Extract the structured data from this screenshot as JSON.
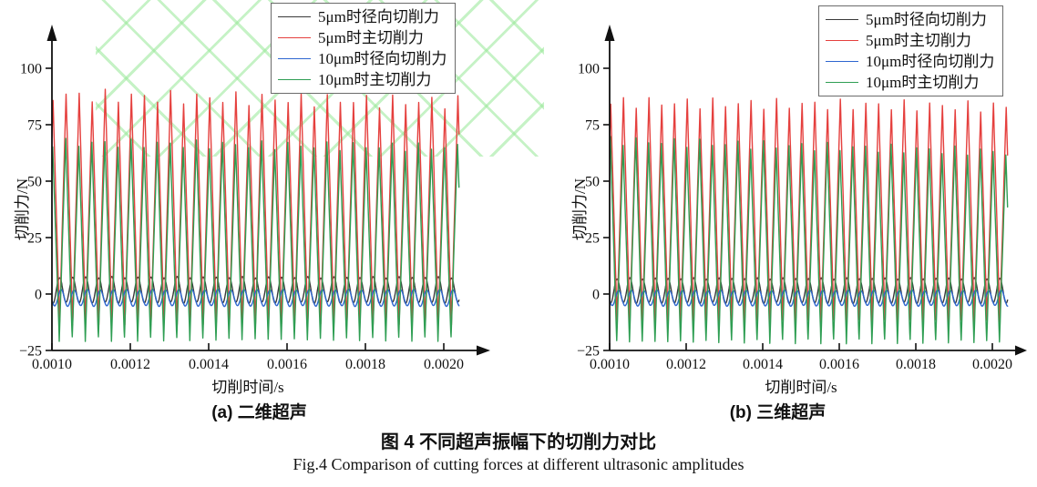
{
  "figure": {
    "caption_cn": "图 4 不同超声振幅下的切削力对比",
    "caption_en": "Fig.4 Comparison of cutting forces at different ultrasonic amplitudes",
    "watermark_color": "#96e896"
  },
  "chart_data": [
    {
      "type": "line",
      "subcaption": "(a) 二维超声",
      "xlabel": "切削时间/s",
      "ylabel": "切削力/N",
      "x_ticks": [
        "0.0010",
        "0.0012",
        "0.0014",
        "0.0016",
        "0.0018",
        "0.0020"
      ],
      "y_ticks": [
        -25,
        0,
        25,
        50,
        75,
        100
      ],
      "xlim": [
        0.001,
        0.002
      ],
      "ylim": [
        -25,
        107
      ],
      "grid": false,
      "legend_position": "top-right-inside",
      "signal": {
        "frequency_hz": 30000,
        "t_start_s": 0.001,
        "t_end_s": 0.00204,
        "cycles_shown": 31
      },
      "series": [
        {
          "name": "5μm时径向切削力",
          "color": "#3a3a3a",
          "shape": "sine",
          "mean_N": 1.8,
          "amp_N": 5.6,
          "phase_offset": 0.25,
          "seed": 11,
          "jitter": 0.12
        },
        {
          "name": "5μm时主切削力",
          "color": "#e5403e",
          "shape": "triangle",
          "peak_N": 88,
          "trough_N": -13,
          "phase_offset": 0.0,
          "seed": 2,
          "jitter": 0.035,
          "trend_N": 3
        },
        {
          "name": "10μm时径向切削力",
          "color": "#2e66d0",
          "shape": "sine",
          "mean_N": -1.7,
          "amp_N": 3.6,
          "phase_offset": 0.13,
          "seed": 23,
          "jitter": 0.12
        },
        {
          "name": "10μm时主切削力",
          "color": "#2f9e53",
          "shape": "triangle",
          "peak_N": 67,
          "trough_N": -20,
          "phase_offset": 0.02778,
          "seed": 5,
          "jitter": 0.03,
          "trend_N": 2
        }
      ]
    },
    {
      "type": "line",
      "subcaption": "(b) 三维超声",
      "xlabel": "切削时间/s",
      "ylabel": "切削力/N",
      "x_ticks": [
        "0.0010",
        "0.0012",
        "0.0014",
        "0.0016",
        "0.0018",
        "0.0020"
      ],
      "y_ticks": [
        -25,
        0,
        25,
        50,
        75,
        100
      ],
      "xlim": [
        0.001,
        0.002
      ],
      "ylim": [
        -25,
        107
      ],
      "grid": false,
      "legend_position": "top-right-inside",
      "signal": {
        "frequency_hz": 30000,
        "t_start_s": 0.001,
        "t_end_s": 0.00204,
        "cycles_shown": 31
      },
      "series": [
        {
          "name": "5μm时径向切削力",
          "color": "#3a3a3a",
          "shape": "sine",
          "mean_N": 1.5,
          "amp_N": 5.4,
          "phase_offset": 0.25,
          "seed": 31,
          "jitter": 0.12
        },
        {
          "name": "5μm时主切削力",
          "color": "#e5403e",
          "shape": "triangle",
          "peak_N": 85,
          "trough_N": -12,
          "phase_offset": 0.0,
          "seed": 7,
          "jitter": 0.03,
          "trend_N": 2
        },
        {
          "name": "10μm时径向切削力",
          "color": "#2e66d0",
          "shape": "sine",
          "mean_N": -1.8,
          "amp_N": 3.4,
          "phase_offset": 0.13,
          "seed": 17,
          "jitter": 0.12
        },
        {
          "name": "10μm时主切削力",
          "color": "#2f9e53",
          "shape": "triangle",
          "peak_N": 68,
          "trough_N": -21,
          "phase_offset": 0.02778,
          "seed": 13,
          "jitter": 0.03,
          "trend_N": 5
        }
      ]
    }
  ]
}
